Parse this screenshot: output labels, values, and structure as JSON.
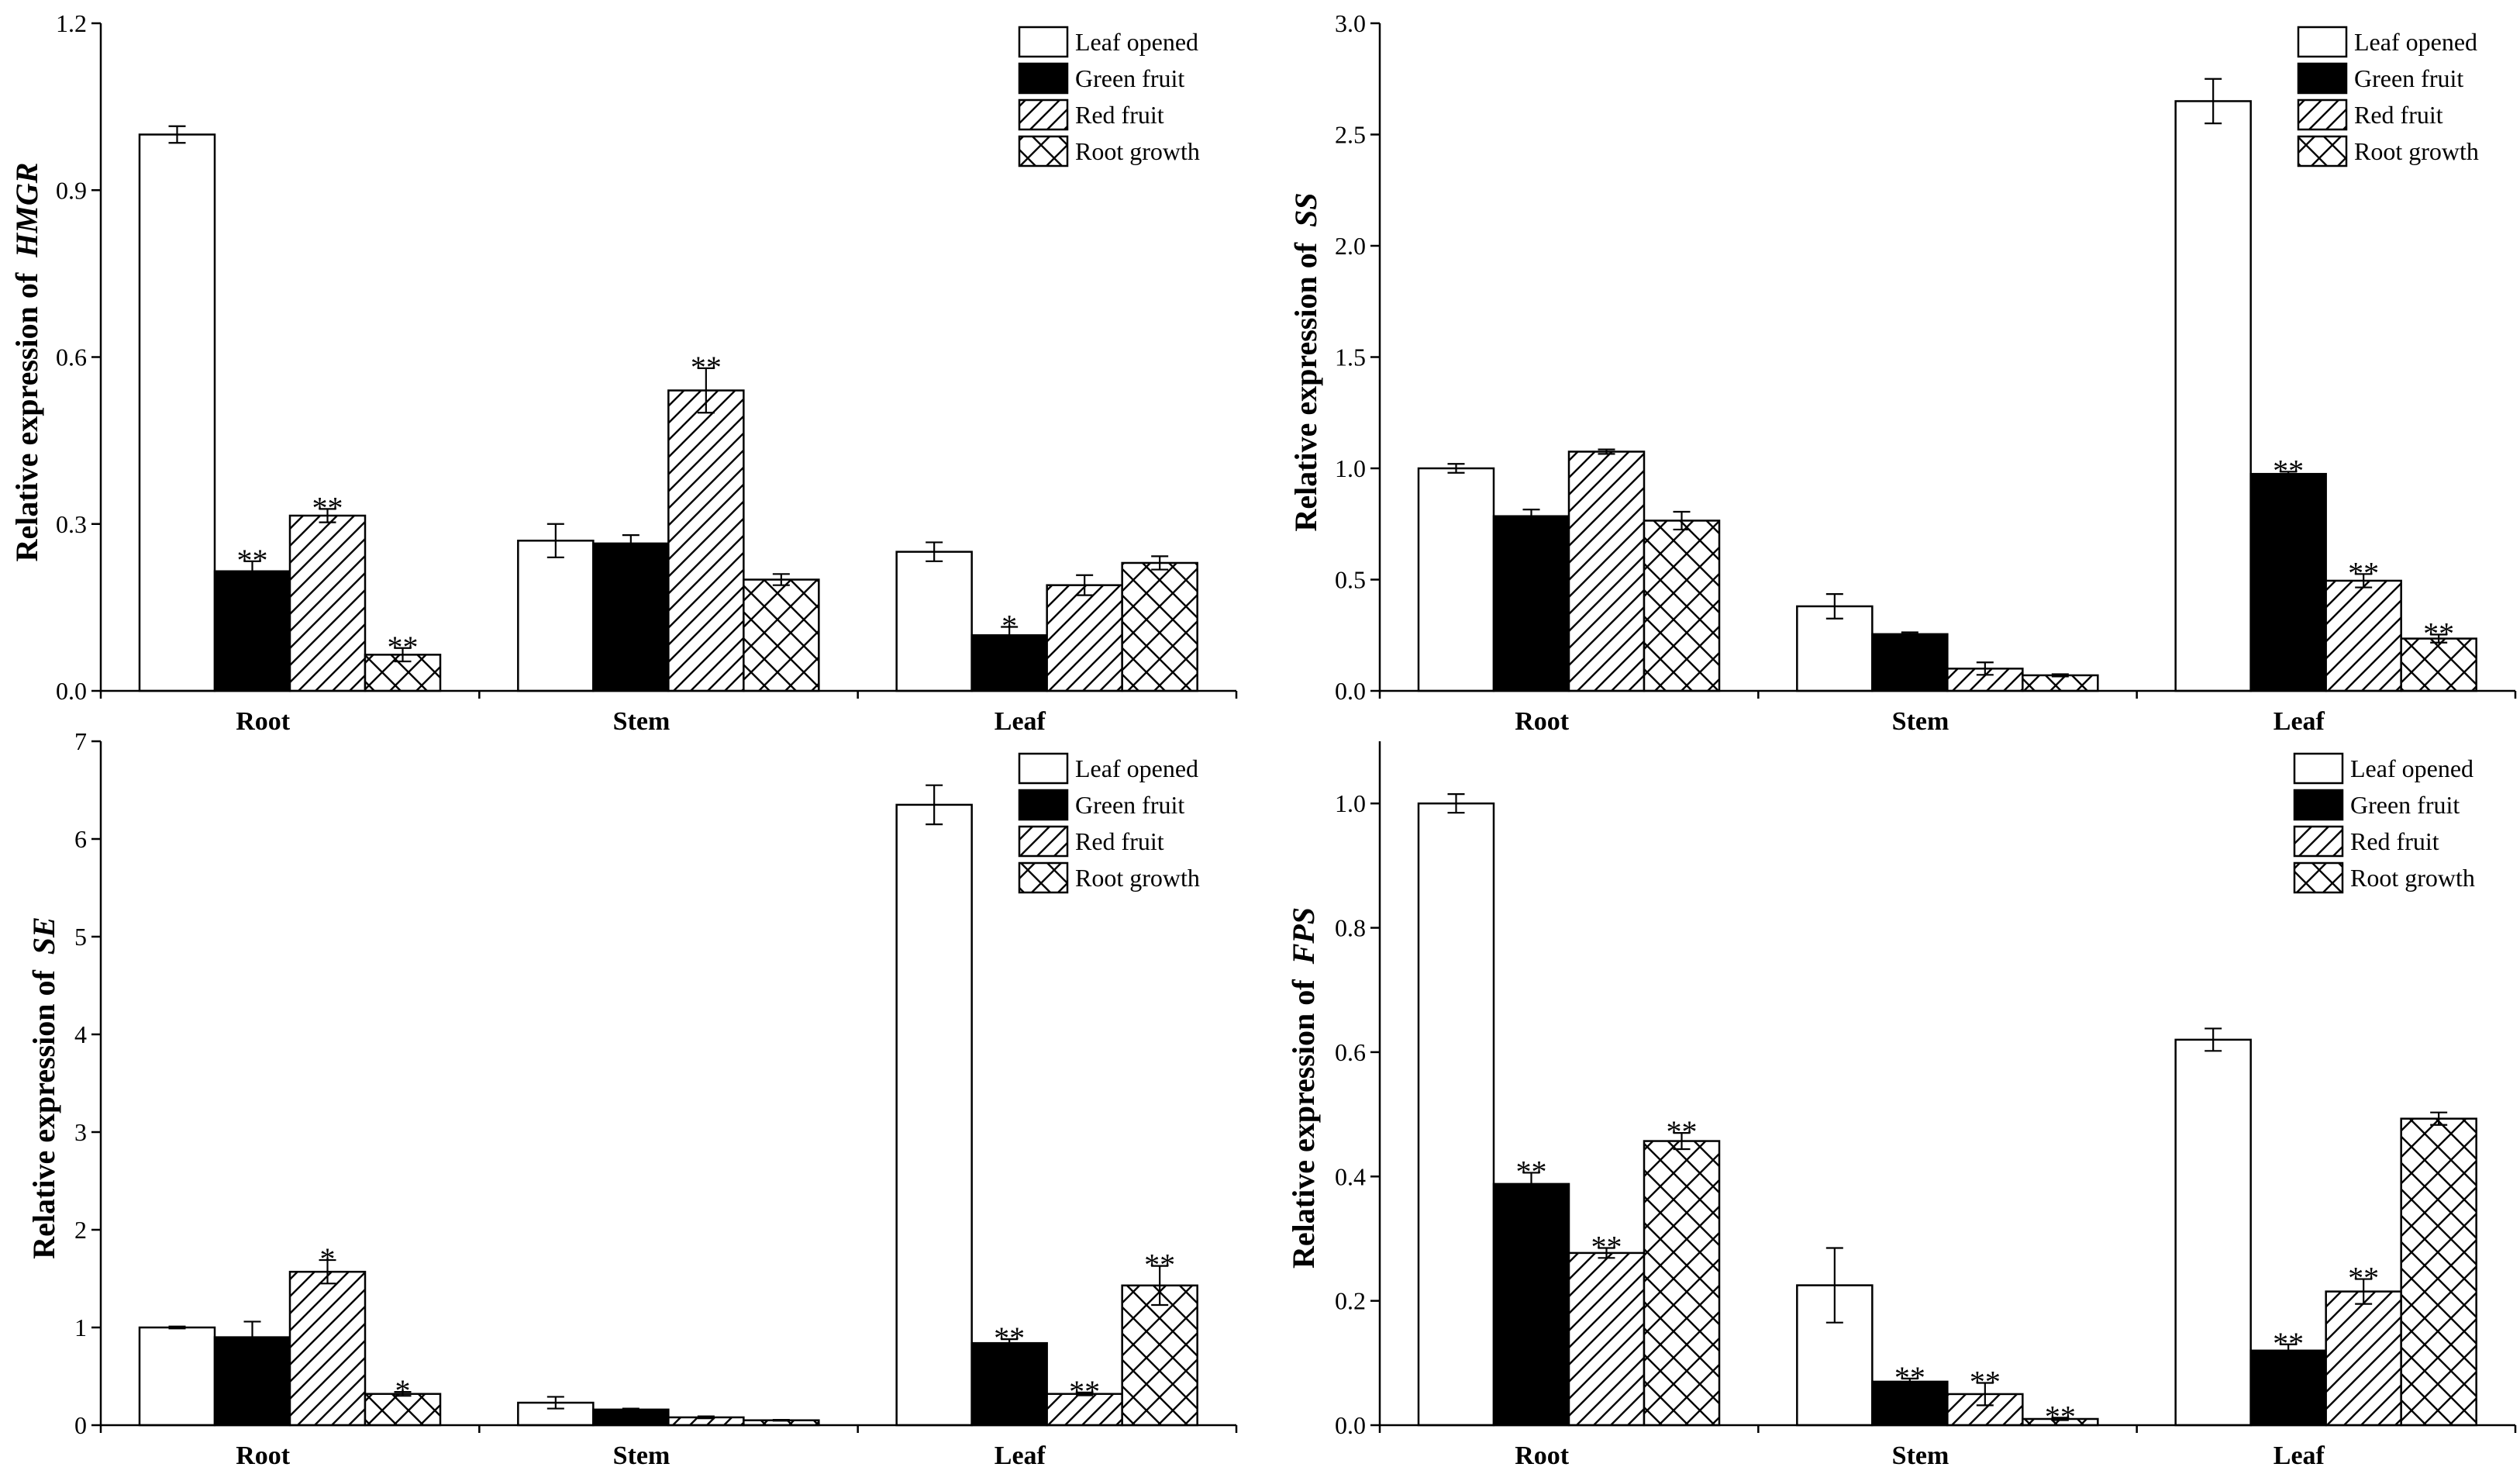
{
  "chart_data": [
    {
      "type": "bar",
      "title": "",
      "ylabel_prefix": "Relative expression of",
      "gene": "HMGR",
      "xlabel": "",
      "categories": [
        "Root",
        "Stem",
        "Leaf"
      ],
      "ylim": [
        0,
        1.2
      ],
      "yticks": [
        "0.0",
        "0.3",
        "0.6",
        "0.9",
        "1.2"
      ],
      "legend_position": "top-right",
      "series": [
        {
          "name": "Leaf opened",
          "pattern": "white",
          "values": [
            1.0,
            0.27,
            0.25
          ],
          "errors": [
            0.015,
            0.03,
            0.017
          ],
          "sig": [
            "",
            "",
            ""
          ]
        },
        {
          "name": "Green fruit",
          "pattern": "black",
          "values": [
            0.215,
            0.265,
            0.1
          ],
          "errors": [
            0.018,
            0.015,
            0.015
          ],
          "sig": [
            "**",
            "",
            "*"
          ]
        },
        {
          "name": "Red fruit",
          "pattern": "hatch",
          "values": [
            0.315,
            0.54,
            0.19
          ],
          "errors": [
            0.012,
            0.04,
            0.018
          ],
          "sig": [
            "**",
            "**",
            ""
          ]
        },
        {
          "name": "Root growth",
          "pattern": "crosshatch",
          "values": [
            0.065,
            0.2,
            0.23
          ],
          "errors": [
            0.012,
            0.01,
            0.012
          ],
          "sig": [
            "**",
            "",
            ""
          ]
        }
      ]
    },
    {
      "type": "bar",
      "title": "",
      "ylabel_prefix": "Relative expression of",
      "gene": "SS",
      "xlabel": "",
      "categories": [
        "Root",
        "Stem",
        "Leaf"
      ],
      "ylim": [
        0,
        3.0
      ],
      "yticks": [
        "0.0",
        "0.5",
        "1.0",
        "1.5",
        "2.0",
        "2.5",
        "3.0"
      ],
      "legend_position": "top-right",
      "series": [
        {
          "name": "Leaf opened",
          "pattern": "white",
          "values": [
            1.0,
            0.38,
            2.65
          ],
          "errors": [
            0.02,
            0.055,
            0.1
          ],
          "sig": [
            "",
            "",
            ""
          ]
        },
        {
          "name": "Green fruit",
          "pattern": "black",
          "values": [
            0.785,
            0.255,
            0.975
          ],
          "errors": [
            0.03,
            0.008,
            0.01
          ],
          "sig": [
            "",
            "",
            "**"
          ]
        },
        {
          "name": "Red fruit",
          "pattern": "hatch",
          "values": [
            1.075,
            0.1,
            0.495
          ],
          "errors": [
            0.01,
            0.028,
            0.03
          ],
          "sig": [
            "",
            "",
            "**"
          ]
        },
        {
          "name": "Root growth",
          "pattern": "crosshatch",
          "values": [
            0.765,
            0.07,
            0.235
          ],
          "errors": [
            0.04,
            0.005,
            0.018
          ],
          "sig": [
            "",
            "",
            "**"
          ]
        }
      ]
    },
    {
      "type": "bar",
      "title": "",
      "ylabel_prefix": "Relative expression of",
      "gene": "SE",
      "xlabel": "",
      "categories": [
        "Root",
        "Stem",
        "Leaf"
      ],
      "ylim": [
        0,
        7
      ],
      "yticks": [
        "0",
        "1",
        "2",
        "3",
        "4",
        "5",
        "6",
        "7"
      ],
      "legend_position": "top-right",
      "series": [
        {
          "name": "Leaf opened",
          "pattern": "white",
          "values": [
            1.0,
            0.23,
            6.35
          ],
          "errors": [
            0.01,
            0.06,
            0.2
          ],
          "sig": [
            "",
            "",
            ""
          ]
        },
        {
          "name": "Green fruit",
          "pattern": "black",
          "values": [
            0.9,
            0.16,
            0.84
          ],
          "errors": [
            0.16,
            0.01,
            0.04
          ],
          "sig": [
            "",
            "",
            "**"
          ]
        },
        {
          "name": "Red fruit",
          "pattern": "hatch",
          "values": [
            1.57,
            0.08,
            0.32
          ],
          "errors": [
            0.12,
            0.01,
            0.015
          ],
          "sig": [
            "*",
            "",
            "**"
          ]
        },
        {
          "name": "Root growth",
          "pattern": "crosshatch",
          "values": [
            0.32,
            0.05,
            1.43
          ],
          "errors": [
            0.02,
            0.005,
            0.2
          ],
          "sig": [
            "*",
            "",
            "**"
          ]
        }
      ]
    },
    {
      "type": "bar",
      "title": "",
      "ylabel_prefix": "Relative expression of",
      "gene": "FPS",
      "xlabel": "",
      "categories": [
        "Root",
        "Stem",
        "Leaf"
      ],
      "ylim": [
        0,
        1.1
      ],
      "yticks": [
        "0.0",
        "0.2",
        "0.4",
        "0.6",
        "0.8",
        "1.0"
      ],
      "legend_position": "top-right",
      "series": [
        {
          "name": "Leaf opened",
          "pattern": "white",
          "values": [
            1.0,
            0.225,
            0.62
          ],
          "errors": [
            0.015,
            0.06,
            0.018
          ],
          "sig": [
            "",
            "",
            ""
          ]
        },
        {
          "name": "Green fruit",
          "pattern": "black",
          "values": [
            0.388,
            0.07,
            0.12
          ],
          "errors": [
            0.018,
            0.005,
            0.01
          ],
          "sig": [
            "**",
            "**",
            "**"
          ]
        },
        {
          "name": "Red fruit",
          "pattern": "hatch",
          "values": [
            0.277,
            0.05,
            0.215
          ],
          "errors": [
            0.008,
            0.018,
            0.02
          ],
          "sig": [
            "**",
            "**",
            "**"
          ]
        },
        {
          "name": "Root growth",
          "pattern": "crosshatch",
          "values": [
            0.457,
            0.01,
            0.493
          ],
          "errors": [
            0.013,
            0.002,
            0.01
          ],
          "sig": [
            "**",
            "**",
            ""
          ]
        }
      ]
    }
  ]
}
